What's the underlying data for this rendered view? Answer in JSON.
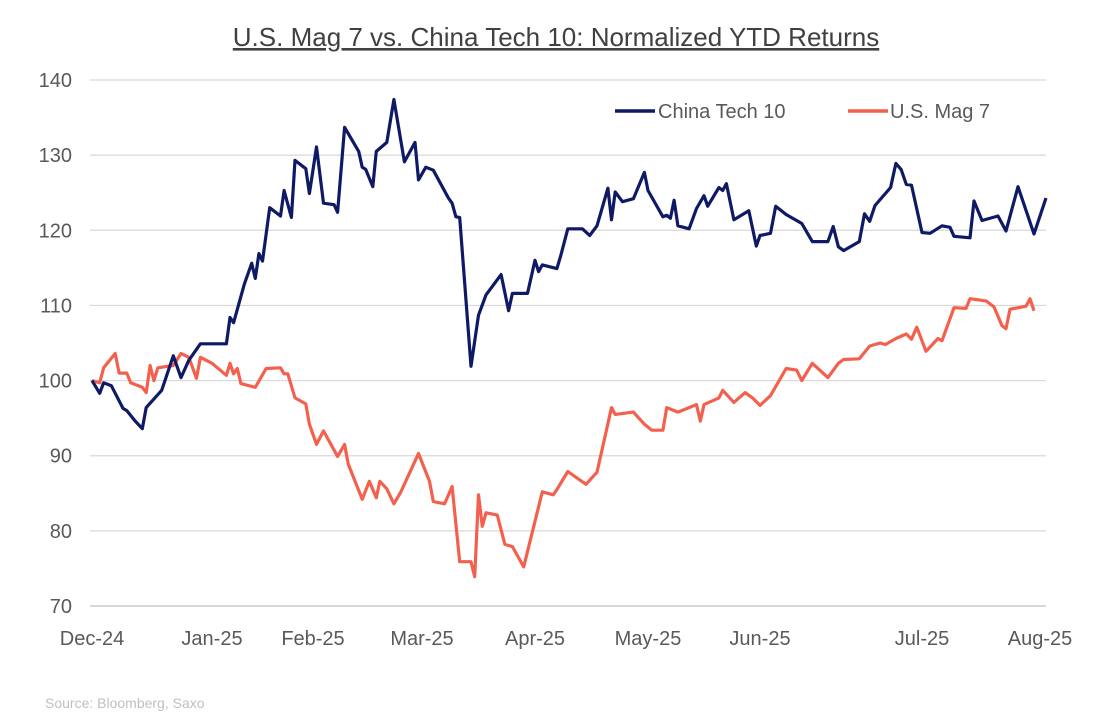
{
  "chart_data": {
    "type": "line",
    "title": "U.S. Mag 7 vs. China Tech 10: Normalized YTD Returns",
    "xlabel": "",
    "ylabel": "",
    "ylim": [
      70,
      140
    ],
    "yticks": [
      70,
      80,
      90,
      100,
      110,
      120,
      130,
      140
    ],
    "xtick_labels": [
      "Dec-24",
      "Jan-25",
      "Feb-25",
      "Mar-25",
      "Apr-25",
      "May-25",
      "Jun-25",
      "Jul-25",
      "Aug-25"
    ],
    "grid": "horizontal",
    "legend_position": "top-right",
    "source": "Source: Bloomberg, Saxo",
    "series": [
      {
        "name": "China Tech 10",
        "color": "#0f1a66",
        "points": [
          [
            "2024-12-31",
            100.0
          ],
          [
            "2025-01-02",
            98.3
          ],
          [
            "2025-01-03",
            99.7
          ],
          [
            "2025-01-05",
            99.3
          ],
          [
            "2025-01-08",
            96.3
          ],
          [
            "2025-01-09",
            96.0
          ],
          [
            "2025-01-11",
            94.7
          ],
          [
            "2025-01-13",
            93.6
          ],
          [
            "2025-01-14",
            96.4
          ],
          [
            "2025-01-18",
            98.7
          ],
          [
            "2025-01-21",
            103.3
          ],
          [
            "2025-01-23",
            100.4
          ],
          [
            "2025-01-25",
            102.7
          ],
          [
            "2025-01-28",
            104.9
          ],
          [
            "2025-02-04",
            104.9
          ],
          [
            "2025-02-05",
            108.4
          ],
          [
            "2025-02-06",
            107.7
          ],
          [
            "2025-02-09",
            112.9
          ],
          [
            "2025-02-11",
            115.6
          ],
          [
            "2025-02-12",
            113.6
          ],
          [
            "2025-02-13",
            116.9
          ],
          [
            "2025-02-14",
            115.9
          ],
          [
            "2025-02-16",
            123.0
          ],
          [
            "2025-02-19",
            121.9
          ],
          [
            "2025-02-20",
            125.3
          ],
          [
            "2025-02-22",
            121.7
          ],
          [
            "2025-02-23",
            129.3
          ],
          [
            "2025-02-26",
            128.2
          ],
          [
            "2025-02-27",
            124.9
          ],
          [
            "2025-03-01",
            131.1
          ],
          [
            "2025-03-03",
            123.6
          ],
          [
            "2025-03-06",
            123.4
          ],
          [
            "2025-03-07",
            122.4
          ],
          [
            "2025-03-09",
            133.7
          ],
          [
            "2025-03-13",
            130.5
          ],
          [
            "2025-03-14",
            128.4
          ],
          [
            "2025-03-15",
            128.1
          ],
          [
            "2025-03-17",
            125.8
          ],
          [
            "2025-03-18",
            130.5
          ],
          [
            "2025-03-21",
            131.7
          ],
          [
            "2025-03-23",
            137.4
          ],
          [
            "2025-03-26",
            129.1
          ],
          [
            "2025-03-29",
            131.7
          ],
          [
            "2025-03-30",
            126.7
          ],
          [
            "2025-04-01",
            128.4
          ],
          [
            "2025-04-03",
            128.0
          ],
          [
            "2025-04-07",
            124.3
          ],
          [
            "2025-04-08",
            123.6
          ],
          [
            "2025-04-09",
            121.8
          ],
          [
            "2025-04-10",
            121.7
          ],
          [
            "2025-04-13",
            101.9
          ],
          [
            "2025-04-15",
            108.7
          ],
          [
            "2025-04-17",
            111.4
          ],
          [
            "2025-04-21",
            114.1
          ],
          [
            "2025-04-23",
            109.3
          ],
          [
            "2025-04-24",
            111.6
          ],
          [
            "2025-04-28",
            111.6
          ],
          [
            "2025-04-30",
            116.0
          ],
          [
            "2025-05-01",
            114.5
          ],
          [
            "2025-05-02",
            115.4
          ],
          [
            "2025-05-06",
            114.9
          ],
          [
            "2025-05-07",
            116.5
          ],
          [
            "2025-05-09",
            120.2
          ],
          [
            "2025-05-13",
            120.2
          ],
          [
            "2025-05-15",
            119.3
          ],
          [
            "2025-05-17",
            120.6
          ],
          [
            "2025-05-20",
            125.6
          ],
          [
            "2025-05-21",
            121.4
          ],
          [
            "2025-05-22",
            125.1
          ],
          [
            "2025-05-24",
            123.8
          ],
          [
            "2025-05-27",
            124.2
          ],
          [
            "2025-05-30",
            127.7
          ],
          [
            "2025-05-31",
            125.3
          ],
          [
            "2025-06-04",
            121.8
          ],
          [
            "2025-06-05",
            122.0
          ],
          [
            "2025-06-06",
            121.6
          ],
          [
            "2025-06-07",
            124.0
          ],
          [
            "2025-06-08",
            120.6
          ],
          [
            "2025-06-11",
            120.2
          ],
          [
            "2025-06-13",
            122.9
          ],
          [
            "2025-06-15",
            124.6
          ],
          [
            "2025-06-16",
            123.2
          ],
          [
            "2025-06-19",
            125.7
          ],
          [
            "2025-06-20",
            125.3
          ],
          [
            "2025-06-21",
            126.2
          ],
          [
            "2025-06-23",
            121.4
          ],
          [
            "2025-06-27",
            122.6
          ],
          [
            "2025-06-29",
            117.9
          ],
          [
            "2025-06-30",
            119.3
          ],
          [
            "2025-07-02",
            119.6
          ],
          [
            "2025-07-03",
            123.2
          ],
          [
            "2025-07-05",
            122.1
          ],
          [
            "2025-07-08",
            120.9
          ],
          [
            "2025-07-10",
            118.5
          ],
          [
            "2025-07-13",
            118.5
          ],
          [
            "2025-07-14",
            120.5
          ],
          [
            "2025-07-15",
            117.8
          ],
          [
            "2025-07-16",
            117.3
          ],
          [
            "2025-07-19",
            118.5
          ],
          [
            "2025-07-20",
            122.2
          ],
          [
            "2025-07-21",
            121.2
          ],
          [
            "2025-07-22",
            123.3
          ],
          [
            "2025-07-25",
            125.7
          ],
          [
            "2025-07-26",
            128.9
          ],
          [
            "2025-07-27",
            128.1
          ],
          [
            "2025-07-28",
            126.1
          ],
          [
            "2025-07-29",
            126.0
          ],
          [
            "2025-07-31",
            119.7
          ],
          [
            "2025-08-02",
            119.6
          ],
          [
            "2025-08-05",
            120.6
          ],
          [
            "2025-08-07",
            120.4
          ],
          [
            "2025-08-08",
            119.2
          ],
          [
            "2025-08-12",
            119.0
          ],
          [
            "2025-08-13",
            123.9
          ],
          [
            "2025-08-15",
            121.3
          ],
          [
            "2025-08-19",
            121.9
          ],
          [
            "2025-08-21",
            119.9
          ],
          [
            "2025-08-24",
            125.8
          ],
          [
            "2025-08-28",
            119.5
          ],
          [
            "2025-08-31",
            124.3
          ]
        ]
      },
      {
        "name": "U.S. Mag 7",
        "color": "#f4604e",
        "points": [
          [
            "2024-12-31",
            100.0
          ],
          [
            "2025-01-02",
            99.7
          ],
          [
            "2025-01-03",
            101.7
          ],
          [
            "2025-01-06",
            103.6
          ],
          [
            "2025-01-07",
            101.0
          ],
          [
            "2025-01-09",
            101.0
          ],
          [
            "2025-01-10",
            99.7
          ],
          [
            "2025-01-13",
            99.1
          ],
          [
            "2025-01-14",
            98.4
          ],
          [
            "2025-01-15",
            102.0
          ],
          [
            "2025-01-16",
            100.0
          ],
          [
            "2025-01-17",
            101.7
          ],
          [
            "2025-01-21",
            102.0
          ],
          [
            "2025-01-23",
            103.6
          ],
          [
            "2025-01-25",
            103.1
          ],
          [
            "2025-01-27",
            100.3
          ],
          [
            "2025-01-28",
            103.1
          ],
          [
            "2025-01-31",
            102.3
          ],
          [
            "2025-02-04",
            100.7
          ],
          [
            "2025-02-05",
            102.3
          ],
          [
            "2025-02-06",
            100.9
          ],
          [
            "2025-02-07",
            101.6
          ],
          [
            "2025-02-08",
            99.6
          ],
          [
            "2025-02-12",
            99.1
          ],
          [
            "2025-02-15",
            101.6
          ],
          [
            "2025-02-19",
            101.7
          ],
          [
            "2025-02-20",
            100.9
          ],
          [
            "2025-02-21",
            100.9
          ],
          [
            "2025-02-23",
            97.7
          ],
          [
            "2025-02-26",
            96.9
          ],
          [
            "2025-02-27",
            94.2
          ],
          [
            "2025-03-01",
            91.5
          ],
          [
            "2025-03-03",
            93.3
          ],
          [
            "2025-03-07",
            89.9
          ],
          [
            "2025-03-09",
            91.5
          ],
          [
            "2025-03-10",
            88.9
          ],
          [
            "2025-03-14",
            84.2
          ],
          [
            "2025-03-16",
            86.6
          ],
          [
            "2025-03-18",
            84.4
          ],
          [
            "2025-03-19",
            86.6
          ],
          [
            "2025-03-21",
            85.6
          ],
          [
            "2025-03-23",
            83.6
          ],
          [
            "2025-03-25",
            85.2
          ],
          [
            "2025-03-30",
            90.3
          ],
          [
            "2025-04-02",
            86.6
          ],
          [
            "2025-04-03",
            83.9
          ],
          [
            "2025-04-06",
            83.6
          ],
          [
            "2025-04-08",
            85.9
          ],
          [
            "2025-04-10",
            75.9
          ],
          [
            "2025-04-13",
            75.9
          ],
          [
            "2025-04-14",
            73.9
          ],
          [
            "2025-04-15",
            84.8
          ],
          [
            "2025-04-16",
            80.6
          ],
          [
            "2025-04-17",
            82.4
          ],
          [
            "2025-04-20",
            82.1
          ],
          [
            "2025-04-22",
            78.2
          ],
          [
            "2025-04-24",
            77.9
          ],
          [
            "2025-04-27",
            75.2
          ],
          [
            "2025-05-02",
            85.2
          ],
          [
            "2025-05-05",
            84.8
          ],
          [
            "2025-05-06",
            85.5
          ],
          [
            "2025-05-09",
            87.9
          ],
          [
            "2025-05-14",
            86.2
          ],
          [
            "2025-05-17",
            87.8
          ],
          [
            "2025-05-21",
            96.4
          ],
          [
            "2025-05-22",
            95.5
          ],
          [
            "2025-05-27",
            95.8
          ],
          [
            "2025-05-30",
            94.2
          ],
          [
            "2025-06-01",
            93.4
          ],
          [
            "2025-06-04",
            93.4
          ],
          [
            "2025-06-05",
            96.4
          ],
          [
            "2025-06-08",
            95.8
          ],
          [
            "2025-06-13",
            96.8
          ],
          [
            "2025-06-14",
            94.6
          ],
          [
            "2025-06-15",
            96.8
          ],
          [
            "2025-06-19",
            97.7
          ],
          [
            "2025-06-20",
            98.7
          ],
          [
            "2025-06-23",
            97.1
          ],
          [
            "2025-06-26",
            98.4
          ],
          [
            "2025-06-28",
            97.7
          ],
          [
            "2025-06-30",
            96.7
          ],
          [
            "2025-07-02",
            98.0
          ],
          [
            "2025-07-05",
            101.6
          ],
          [
            "2025-07-07",
            101.4
          ],
          [
            "2025-07-08",
            100.0
          ],
          [
            "2025-07-10",
            102.3
          ],
          [
            "2025-07-13",
            100.4
          ],
          [
            "2025-07-15",
            102.3
          ],
          [
            "2025-07-16",
            102.8
          ],
          [
            "2025-07-19",
            102.9
          ],
          [
            "2025-07-21",
            104.6
          ],
          [
            "2025-07-23",
            105.0
          ],
          [
            "2025-07-24",
            104.8
          ],
          [
            "2025-07-26",
            105.6
          ],
          [
            "2025-07-28",
            106.2
          ],
          [
            "2025-07-29",
            105.5
          ],
          [
            "2025-07-30",
            107.1
          ],
          [
            "2025-08-01",
            103.9
          ],
          [
            "2025-08-04",
            105.6
          ],
          [
            "2025-08-05",
            105.3
          ],
          [
            "2025-08-08",
            109.7
          ],
          [
            "2025-08-11",
            109.6
          ],
          [
            "2025-08-12",
            110.9
          ],
          [
            "2025-08-16",
            110.6
          ],
          [
            "2025-08-18",
            109.8
          ],
          [
            "2025-08-20",
            107.3
          ],
          [
            "2025-08-21",
            106.9
          ],
          [
            "2025-08-22",
            109.5
          ],
          [
            "2025-08-26",
            109.9
          ],
          [
            "2025-08-27",
            110.9
          ],
          [
            "2025-08-28",
            109.3
          ]
        ]
      }
    ]
  }
}
